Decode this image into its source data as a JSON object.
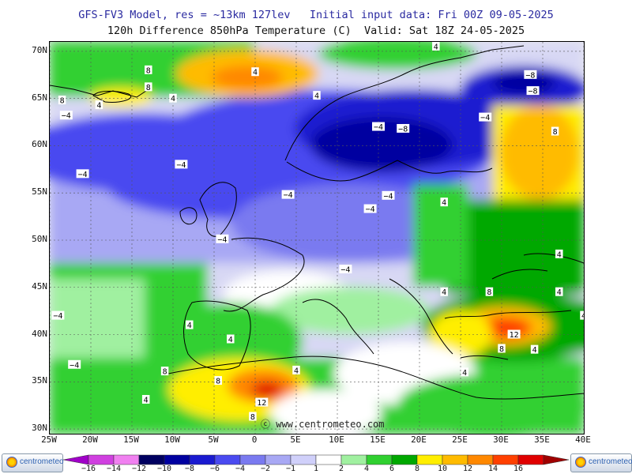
{
  "header": {
    "line1": "GFS-FV3 Model, res = ~13km 127lev   Initial input data: Fri 00Z 09-05-2025",
    "line2": "120h Difference 850hPa Temperature (C)  Valid: Sat 18Z 24-05-2025"
  },
  "map": {
    "lat_labels": [
      "70N",
      "65N",
      "60N",
      "55N",
      "50N",
      "45N",
      "40N",
      "35N",
      "30N"
    ],
    "lon_labels": [
      "25W",
      "20W",
      "15W",
      "10W",
      "5W",
      "0",
      "5E",
      "10E",
      "15E",
      "20E",
      "25E",
      "30E",
      "35E",
      "40E"
    ],
    "lon_range": [
      -25,
      40
    ],
    "lat_range": [
      29.5,
      71
    ],
    "contour_labels": [
      {
        "text": "8",
        "lon": -13,
        "lat": 68
      },
      {
        "text": "4",
        "lon": 0,
        "lat": 67.8
      },
      {
        "text": "8",
        "lon": -13,
        "lat": 66.2
      },
      {
        "text": "8",
        "lon": -23.5,
        "lat": 64.8
      },
      {
        "text": "4",
        "lon": -19,
        "lat": 64.3
      },
      {
        "text": "4",
        "lon": -10,
        "lat": 65
      },
      {
        "text": "−4",
        "lon": -23,
        "lat": 63.2
      },
      {
        "text": "4",
        "lon": 7.5,
        "lat": 65.3
      },
      {
        "text": "4",
        "lon": 22,
        "lat": 70.5
      },
      {
        "text": "−8",
        "lon": 33.5,
        "lat": 67.5
      },
      {
        "text": "−8",
        "lon": 33.8,
        "lat": 65.8
      },
      {
        "text": "−4",
        "lon": 15,
        "lat": 62
      },
      {
        "text": "−8",
        "lon": 18,
        "lat": 61.8
      },
      {
        "text": "−4",
        "lon": 28,
        "lat": 63
      },
      {
        "text": "8",
        "lon": 36.5,
        "lat": 61.5
      },
      {
        "text": "−4",
        "lon": -21,
        "lat": 57
      },
      {
        "text": "−4",
        "lon": -9,
        "lat": 58
      },
      {
        "text": "−4",
        "lon": 4,
        "lat": 54.8
      },
      {
        "text": "−4",
        "lon": 16.2,
        "lat": 54.7
      },
      {
        "text": "−4",
        "lon": 14,
        "lat": 53.3
      },
      {
        "text": "4",
        "lon": 23,
        "lat": 54
      },
      {
        "text": "−4",
        "lon": -4,
        "lat": 50.1
      },
      {
        "text": "−4",
        "lon": 11,
        "lat": 46.9
      },
      {
        "text": "4",
        "lon": 37,
        "lat": 48.5
      },
      {
        "text": "4",
        "lon": 23,
        "lat": 44.5
      },
      {
        "text": "8",
        "lon": 28.5,
        "lat": 44.5
      },
      {
        "text": "4",
        "lon": 37,
        "lat": 44.5
      },
      {
        "text": "−4",
        "lon": -24,
        "lat": 42
      },
      {
        "text": "4",
        "lon": -8,
        "lat": 41
      },
      {
        "text": "4",
        "lon": -3,
        "lat": 39.5
      },
      {
        "text": "4",
        "lon": 40,
        "lat": 42
      },
      {
        "text": "12",
        "lon": 31.5,
        "lat": 40
      },
      {
        "text": "8",
        "lon": 30,
        "lat": 38.5
      },
      {
        "text": "4",
        "lon": 34,
        "lat": 38.4
      },
      {
        "text": "−4",
        "lon": -22,
        "lat": 36.8
      },
      {
        "text": "8",
        "lon": -11,
        "lat": 36.1
      },
      {
        "text": "4",
        "lon": 5,
        "lat": 36.2
      },
      {
        "text": "4",
        "lon": 25.5,
        "lat": 36
      },
      {
        "text": "8",
        "lon": -4.5,
        "lat": 35.1
      },
      {
        "text": "4",
        "lon": -13.3,
        "lat": 33.1
      },
      {
        "text": "12",
        "lon": 0.8,
        "lat": 32.8
      },
      {
        "text": "8",
        "lon": -0.3,
        "lat": 31.3
      }
    ],
    "watermark": "ⓒ www.centrometeo.com"
  },
  "colorbar": {
    "ticks": [
      "−16",
      "−14",
      "−12",
      "−10",
      "−8",
      "−6",
      "−4",
      "−2",
      "−1",
      "1",
      "2",
      "4",
      "6",
      "8",
      "10",
      "12",
      "14",
      "16"
    ],
    "colors": [
      "#a000c8",
      "#d040e0",
      "#f080f0",
      "#000060",
      "#0000a0",
      "#1a1ad0",
      "#4a4af0",
      "#7a7af0",
      "#a8a8f4",
      "#d0d0fa",
      "#ffffff",
      "#a0f0a0",
      "#30d030",
      "#00a800",
      "#ffee00",
      "#ffbb00",
      "#ff8800",
      "#ff4000",
      "#e00000",
      "#a00000"
    ]
  },
  "logos": {
    "left": "centrometeo",
    "right": "centrometeo"
  }
}
